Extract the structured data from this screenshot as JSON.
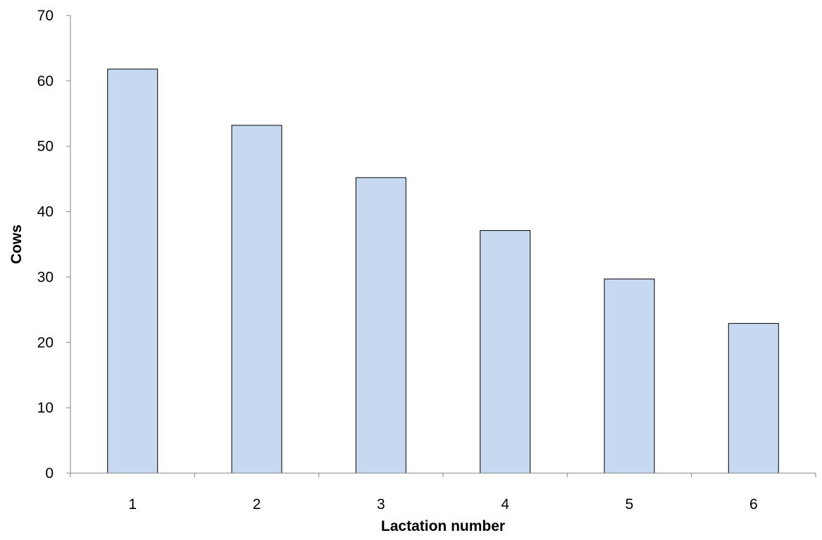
{
  "chart_data": {
    "type": "bar",
    "title": "",
    "xlabel": "Lactation number",
    "ylabel": "Cows",
    "categories": [
      "1",
      "2",
      "3",
      "4",
      "5",
      "6"
    ],
    "values": [
      61.8,
      53.2,
      45.2,
      37.1,
      29.7,
      22.9
    ],
    "ylim": [
      0,
      70
    ],
    "yticks": [
      0,
      10,
      20,
      30,
      40,
      50,
      60,
      70
    ],
    "grid": false,
    "legend": "none",
    "bar_color": "#c6d9f0",
    "bar_edge_color": "#000000",
    "axis_color": "#868686"
  }
}
